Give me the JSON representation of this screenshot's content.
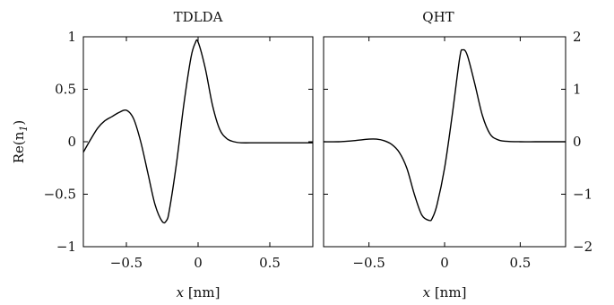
{
  "chart_data": [
    {
      "type": "line",
      "title": "TDLDA",
      "ylabel": "Re(n",
      "ylabel_sub": "1",
      "ylabel_close": ")",
      "xlabel_var": "x",
      "xlabel_unit": "[nm]",
      "xlim": [
        -0.8,
        0.8
      ],
      "ylim": [
        -1,
        1
      ],
      "xticks": [
        -0.5,
        0,
        0.5
      ],
      "xtick_labels": [
        "−0.5",
        "0",
        "0.5"
      ],
      "yticks": [
        -1,
        -0.5,
        0,
        0.5,
        1
      ],
      "ytick_labels": [
        "−1",
        "−0.5",
        "0",
        "0.5",
        "1"
      ],
      "ytick_side": "left",
      "series": [
        {
          "x": [
            -0.8,
            -0.75,
            -0.7,
            -0.65,
            -0.6,
            -0.55,
            -0.5,
            -0.45,
            -0.4,
            -0.35,
            -0.3,
            -0.25,
            -0.22,
            -0.2,
            -0.15,
            -0.1,
            -0.05,
            -0.02,
            0.0,
            0.05,
            0.1,
            0.15,
            0.2,
            0.25,
            0.3,
            0.4,
            0.5,
            0.6,
            0.7,
            0.8
          ],
          "y": [
            -0.1,
            0.02,
            0.13,
            0.2,
            0.24,
            0.28,
            0.3,
            0.22,
            0.0,
            -0.3,
            -0.6,
            -0.76,
            -0.75,
            -0.65,
            -0.2,
            0.35,
            0.8,
            0.94,
            0.95,
            0.7,
            0.35,
            0.12,
            0.03,
            0.0,
            -0.01,
            -0.01,
            -0.01,
            -0.01,
            -0.01,
            -0.01
          ]
        }
      ]
    },
    {
      "type": "line",
      "title": "QHT",
      "xlabel_var": "x",
      "xlabel_unit": "[nm]",
      "xlim": [
        -0.8,
        0.8
      ],
      "ylim": [
        -2,
        2
      ],
      "xticks": [
        -0.5,
        0,
        0.5
      ],
      "xtick_labels": [
        "−0.5",
        "0",
        "0.5"
      ],
      "yticks": [
        -2,
        -1,
        0,
        1,
        2
      ],
      "ytick_labels": [
        "−2",
        "−1",
        "0",
        "1",
        "2"
      ],
      "ytick_side": "right",
      "series": [
        {
          "x": [
            -0.8,
            -0.7,
            -0.6,
            -0.5,
            -0.45,
            -0.4,
            -0.35,
            -0.3,
            -0.25,
            -0.2,
            -0.15,
            -0.1,
            -0.08,
            -0.05,
            0.0,
            0.05,
            0.1,
            0.12,
            0.15,
            0.2,
            0.25,
            0.3,
            0.35,
            0.4,
            0.5,
            0.6,
            0.7,
            0.8
          ],
          "y": [
            0.0,
            0.0,
            0.02,
            0.05,
            0.05,
            0.02,
            -0.05,
            -0.2,
            -0.5,
            -1.0,
            -1.4,
            -1.5,
            -1.45,
            -1.2,
            -0.5,
            0.5,
            1.6,
            1.75,
            1.65,
            1.1,
            0.5,
            0.15,
            0.04,
            0.01,
            0.0,
            0.0,
            0.0,
            0.0
          ]
        }
      ]
    }
  ]
}
